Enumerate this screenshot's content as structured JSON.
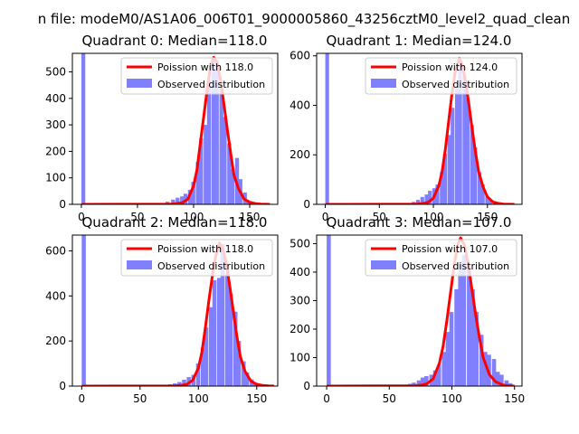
{
  "figure": {
    "suptitle": "n file: modeM0/AS1A06_006T01_9000005860_43256cztM0_level2_quad_clean"
  },
  "colors": {
    "histogram": "#8080ff",
    "poisson": "#ff0000"
  },
  "chart_data": [
    {
      "type": "bar",
      "title": "Quadrant 0: Median=118.0",
      "xlabel": "",
      "ylabel": "",
      "xlim": [
        -8,
        175
      ],
      "ylim": [
        0,
        570
      ],
      "xticks": [
        0,
        50,
        100,
        150
      ],
      "yticks": [
        0,
        100,
        200,
        300,
        400,
        500
      ],
      "legend_position": "top-right",
      "series": [
        {
          "name": "Poission with 118.0",
          "x": [
            0,
            80,
            85,
            90,
            95,
            100,
            103,
            106,
            109,
            112,
            115,
            118,
            121,
            124,
            127,
            130,
            133,
            136,
            140,
            145,
            150,
            155,
            160,
            168
          ],
          "values": [
            0,
            1,
            3,
            6,
            20,
            70,
            130,
            230,
            330,
            430,
            520,
            555,
            535,
            470,
            380,
            285,
            195,
            110,
            60,
            20,
            8,
            3,
            1,
            0
          ]
        },
        {
          "name": "Observed distribution",
          "bin_width": 3.5,
          "x": [
            0,
            70,
            75,
            80,
            84,
            88,
            91,
            95,
            98,
            102,
            105,
            109,
            112,
            116,
            119,
            123,
            126,
            130,
            133,
            137,
            140,
            144,
            147,
            151
          ],
          "values": [
            570,
            5,
            10,
            18,
            25,
            30,
            40,
            55,
            85,
            160,
            250,
            300,
            470,
            540,
            545,
            440,
            330,
            230,
            135,
            175,
            95,
            45,
            15,
            5
          ]
        }
      ]
    },
    {
      "type": "bar",
      "title": "Quadrant 1: Median=124.0",
      "xlabel": "",
      "ylabel": "",
      "xlim": [
        -8,
        182
      ],
      "ylim": [
        0,
        610
      ],
      "xticks": [
        0,
        50,
        100,
        150
      ],
      "yticks": [
        0,
        200,
        400,
        600
      ],
      "legend_position": "top-right",
      "series": [
        {
          "name": "Poission with 124.0",
          "x": [
            0,
            85,
            90,
            95,
            100,
            105,
            108,
            111,
            114,
            117,
            120,
            124,
            127,
            130,
            133,
            136,
            139,
            142,
            146,
            150,
            155,
            160,
            165,
            175
          ],
          "values": [
            0,
            1,
            3,
            8,
            25,
            75,
            130,
            220,
            330,
            440,
            530,
            590,
            560,
            490,
            400,
            300,
            210,
            130,
            70,
            30,
            10,
            4,
            1,
            0
          ]
        },
        {
          "name": "Observed distribution",
          "bin_width": 3.5,
          "x": [
            0,
            75,
            80,
            84,
            88,
            92,
            95,
            99,
            102,
            106,
            109,
            113,
            116,
            120,
            123,
            127,
            130,
            134,
            137,
            141,
            144,
            148,
            151,
            155
          ],
          "values": [
            610,
            5,
            10,
            18,
            30,
            40,
            55,
            65,
            80,
            130,
            205,
            280,
            390,
            470,
            575,
            520,
            430,
            320,
            230,
            130,
            80,
            35,
            15,
            5
          ]
        }
      ]
    },
    {
      "type": "bar",
      "title": "Quadrant 2: Median=118.0",
      "xlabel": "",
      "ylabel": "",
      "xlim": [
        -8,
        168
      ],
      "ylim": [
        0,
        670
      ],
      "xticks": [
        0,
        50,
        100,
        150
      ],
      "yticks": [
        0,
        200,
        400,
        600
      ],
      "legend_position": "top-right",
      "series": [
        {
          "name": "Poission with 118.0",
          "x": [
            0,
            80,
            85,
            90,
            95,
            100,
            103,
            106,
            109,
            112,
            115,
            118,
            121,
            124,
            127,
            130,
            133,
            136,
            140,
            145,
            150,
            155,
            160,
            165
          ],
          "values": [
            0,
            1,
            3,
            8,
            25,
            80,
            150,
            260,
            380,
            490,
            580,
            635,
            610,
            540,
            440,
            330,
            220,
            130,
            65,
            22,
            8,
            3,
            1,
            0
          ]
        },
        {
          "name": "Observed distribution",
          "bin_width": 3.5,
          "x": [
            0,
            70,
            74,
            78,
            82,
            86,
            90,
            94,
            98,
            102,
            105,
            109,
            112,
            116,
            119,
            123,
            126,
            130,
            133,
            137,
            140,
            144,
            147,
            151
          ],
          "values": [
            670,
            5,
            8,
            12,
            18,
            28,
            40,
            50,
            100,
            170,
            260,
            350,
            470,
            480,
            630,
            500,
            410,
            330,
            200,
            110,
            60,
            30,
            12,
            4
          ]
        }
      ]
    },
    {
      "type": "bar",
      "title": "Quadrant 3: Median=107.0",
      "xlabel": "",
      "ylabel": "",
      "xlim": [
        -8,
        156
      ],
      "ylim": [
        0,
        530
      ],
      "xticks": [
        0,
        50,
        100,
        150
      ],
      "yticks": [
        0,
        100,
        200,
        300,
        400,
        500
      ],
      "legend_position": "top-right",
      "series": [
        {
          "name": "Poission with 107.0",
          "x": [
            0,
            70,
            75,
            80,
            85,
            90,
            93,
            96,
            99,
            102,
            105,
            107,
            110,
            113,
            116,
            119,
            122,
            125,
            130,
            135,
            140,
            145,
            150
          ],
          "values": [
            0,
            1,
            3,
            8,
            25,
            80,
            140,
            230,
            330,
            430,
            500,
            520,
            495,
            430,
            340,
            250,
            170,
            100,
            40,
            15,
            5,
            1,
            0
          ]
        },
        {
          "name": "Observed distribution",
          "bin_width": 3.3,
          "x": [
            0,
            62,
            65,
            68,
            72,
            75,
            78,
            82,
            85,
            88,
            92,
            95,
            98,
            102,
            105,
            108,
            112,
            115,
            118,
            122,
            125,
            128,
            132,
            135,
            138,
            142,
            145
          ],
          "values": [
            530,
            5,
            8,
            12,
            20,
            30,
            35,
            40,
            55,
            75,
            120,
            190,
            260,
            340,
            430,
            460,
            420,
            340,
            260,
            180,
            120,
            110,
            95,
            50,
            40,
            20,
            10
          ]
        }
      ]
    }
  ]
}
